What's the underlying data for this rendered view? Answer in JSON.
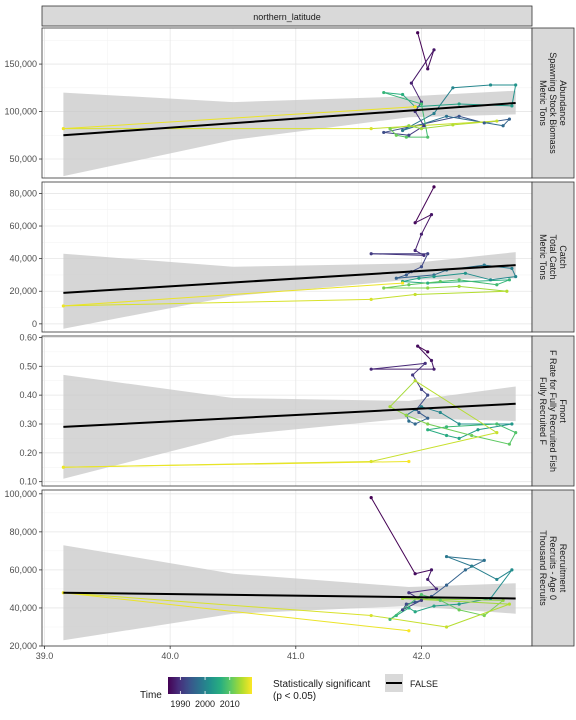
{
  "chart_data": {
    "type": "line",
    "facet_label": "northern_latitude",
    "xlim": [
      38.98,
      42.88
    ],
    "x_ticks": [
      39.0,
      40.0,
      41.0,
      42.0
    ],
    "x_tick_labels": [
      "39.0",
      "40.0",
      "41.0",
      "42.0"
    ],
    "grid": true,
    "colormap": [
      "#440154",
      "#472d7b",
      "#3b528b",
      "#2c728e",
      "#21918c",
      "#28ae80",
      "#5ec962",
      "#addc30",
      "#fde725"
    ],
    "time_range": [
      1985,
      2019
    ],
    "panels": [
      {
        "strip": [
          "Abundance",
          "Spawning Stock Biomass",
          "Metric Tons"
        ],
        "ylim": [
          30000,
          188000
        ],
        "y_ticks": [
          50000,
          100000,
          150000
        ],
        "y_tick_labels": [
          "50,000",
          "100,000",
          "150,000"
        ],
        "trend": {
          "x": [
            39.15,
            42.75
          ],
          "y": [
            75000,
            109000
          ]
        },
        "ribbon": {
          "x": [
            39.15,
            40.5,
            41.9,
            42.75
          ],
          "lower": [
            32000,
            70000,
            94000,
            97000
          ],
          "upper": [
            120000,
            110000,
            116000,
            122000
          ]
        },
        "series": {
          "x": [
            41.97,
            42.05,
            42.1,
            41.92,
            42.0,
            41.95,
            42.02,
            41.9,
            41.7,
            42.3,
            42.5,
            42.7,
            42.65,
            42.2,
            41.85,
            42.1,
            42.25,
            42.55,
            42.75,
            42.72,
            42.3,
            41.95,
            41.85,
            41.7,
            42.0,
            42.05,
            41.88,
            41.8,
            41.75,
            41.9,
            42.0,
            42.25,
            42.6,
            41.6,
            39.15,
            41.95
          ],
          "y": [
            183000,
            145000,
            165000,
            130000,
            110000,
            100000,
            85000,
            75000,
            78000,
            95000,
            88000,
            92000,
            85000,
            95000,
            80000,
            98000,
            125000,
            128000,
            128000,
            106000,
            108000,
            105000,
            118000,
            120000,
            108000,
            73000,
            73000,
            75000,
            82000,
            85000,
            82000,
            86000,
            90000,
            82000,
            82000,
            105000
          ]
        }
      },
      {
        "strip": [
          "Catch",
          "Total Catch",
          "Metric Tons"
        ],
        "ylim": [
          -5000,
          87000
        ],
        "y_ticks": [
          0,
          20000,
          40000,
          60000,
          80000
        ],
        "y_tick_labels": [
          "0",
          "20,000",
          "40,000",
          "60,000",
          "80,000"
        ],
        "trend": {
          "x": [
            39.15,
            42.75
          ],
          "y": [
            19000,
            36000
          ]
        },
        "ribbon": {
          "x": [
            39.15,
            40.5,
            41.9,
            42.75
          ],
          "lower": [
            -3000,
            17000,
            27000,
            28000
          ],
          "upper": [
            43000,
            35000,
            37000,
            44000
          ]
        },
        "series": {
          "x": [
            42.1,
            41.95,
            42.08,
            42.0,
            41.95,
            42.02,
            41.6,
            42.05,
            42.0,
            41.92,
            41.88,
            41.8,
            42.1,
            42.2,
            42.5,
            42.72,
            42.75,
            42.55,
            42.35,
            42.1,
            41.98,
            41.85,
            42.05,
            42.7,
            42.6,
            42.3,
            42.15,
            41.9,
            41.7,
            42.05,
            42.3,
            42.68,
            41.95,
            41.6,
            39.15,
            41.85
          ],
          "y": [
            84000,
            62000,
            67000,
            55000,
            45000,
            42000,
            43000,
            43000,
            35000,
            32000,
            30000,
            28000,
            30000,
            33000,
            36000,
            34000,
            29000,
            27000,
            31000,
            29000,
            28000,
            26000,
            25000,
            27000,
            24000,
            27000,
            26000,
            24000,
            22000,
            22000,
            23000,
            20000,
            18000,
            15000,
            11000,
            25000
          ]
        }
      },
      {
        "strip": [
          "Fmort",
          "F Rate for Fully Recruited Fish",
          "Fully Recruited F"
        ],
        "ylim": [
          0.085,
          0.605
        ],
        "y_ticks": [
          0.1,
          0.2,
          0.3,
          0.4,
          0.5,
          0.6
        ],
        "y_tick_labels": [
          "0.10",
          "0.20",
          "0.30",
          "0.40",
          "0.50",
          "0.60"
        ],
        "trend": {
          "x": [
            39.15,
            42.75
          ],
          "y": [
            0.29,
            0.37
          ]
        },
        "ribbon": {
          "x": [
            39.15,
            40.5,
            41.9,
            42.75
          ],
          "lower": [
            0.11,
            0.26,
            0.32,
            0.31
          ],
          "upper": [
            0.47,
            0.39,
            0.38,
            0.43
          ]
        },
        "series": {
          "x": [
            42.05,
            41.97,
            42.08,
            42.1,
            41.6,
            42.03,
            41.93,
            42.0,
            42.05,
            41.96,
            41.98,
            42.05,
            41.95,
            41.9,
            41.88,
            41.95,
            42.0,
            42.15,
            42.3,
            42.72,
            42.45,
            42.3,
            42.2,
            42.05,
            42.2,
            42.6,
            42.75,
            42.7,
            42.4,
            42.05,
            41.88,
            41.75,
            41.95,
            42.6,
            41.6,
            39.15,
            41.9
          ],
          "y": [
            0.55,
            0.57,
            0.52,
            0.49,
            0.49,
            0.51,
            0.47,
            0.42,
            0.4,
            0.35,
            0.34,
            0.32,
            0.3,
            0.31,
            0.33,
            0.35,
            0.36,
            0.34,
            0.3,
            0.3,
            0.28,
            0.25,
            0.26,
            0.28,
            0.29,
            0.3,
            0.27,
            0.23,
            0.26,
            0.3,
            0.33,
            0.36,
            0.45,
            0.27,
            0.17,
            0.15,
            0.17
          ]
        }
      },
      {
        "strip": [
          "Recruitment",
          "Recruits - Age 0",
          "Thousand Recruits"
        ],
        "ylim": [
          20000,
          102000
        ],
        "y_ticks": [
          20000,
          40000,
          60000,
          80000,
          100000
        ],
        "y_tick_labels": [
          "20,000",
          "40,000",
          "60,000",
          "80,000",
          "100,000"
        ],
        "trend": {
          "x": [
            39.15,
            42.75
          ],
          "y": [
            48000,
            45000
          ]
        },
        "ribbon": {
          "x": [
            39.15,
            40.5,
            41.9,
            42.75
          ],
          "lower": [
            23000,
            37000,
            41000,
            37000
          ],
          "upper": [
            73000,
            58000,
            51000,
            53000
          ]
        },
        "series": {
          "x": [
            41.6,
            41.95,
            42.08,
            42.05,
            42.12,
            41.9,
            42.0,
            41.85,
            41.88,
            41.95,
            42.08,
            42.2,
            42.35,
            42.5,
            42.2,
            42.4,
            42.6,
            42.72,
            42.55,
            42.3,
            42.1,
            41.95,
            41.9,
            41.8,
            41.75,
            42.0,
            42.15,
            42.3,
            42.5,
            42.65,
            41.85,
            42.7,
            42.2,
            41.6,
            39.15,
            41.9
          ],
          "y": [
            98000,
            58000,
            60000,
            55000,
            50000,
            48000,
            44000,
            39000,
            42000,
            43000,
            46000,
            52000,
            60000,
            65000,
            67000,
            62000,
            55000,
            60000,
            45000,
            42000,
            41000,
            38000,
            40000,
            36000,
            34000,
            47000,
            44000,
            39000,
            36000,
            44000,
            45000,
            42000,
            30000,
            36000,
            48000,
            28000
          ]
        }
      }
    ],
    "legend": {
      "time_title": "Time",
      "time_tick_values": [
        1990,
        2000,
        2010
      ],
      "time_tick_labels": [
        "1990",
        "2000",
        "2010"
      ],
      "sig_title_1": "Statistically significant",
      "sig_title_2": "(p < 0.05)",
      "sig_label": "FALSE"
    }
  }
}
